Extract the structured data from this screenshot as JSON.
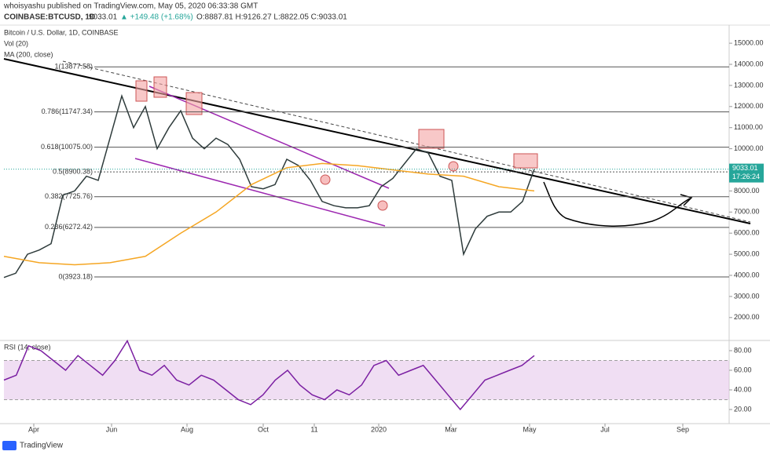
{
  "header": {
    "author_line": "whoisyashu published on TradingView.com, May 05, 2020 06:33:38 GMT",
    "symbol": "COINBASE:BTCUSD, 1D",
    "last": "9033.01",
    "change": "▲ +149.48 (+1.68%)",
    "ohlc": "O:8887.81 H:9126.27 L:8822.05 C:9033.01"
  },
  "chart_data": [
    {
      "type": "line",
      "indicators": [
        "Vol (20)"
      ],
      "xticks": [
        "Apr",
        "Jun",
        "Aug",
        "Oct",
        "11",
        "2020",
        "Mar",
        "May",
        "Jul",
        "Sep"
      ],
      "series": [
        {
          "name": "Bitcoin / U.S. Dollar, 1D, COINBASE",
          "color": "#2e3b3b",
          "values": [
            3900,
            4100,
            5000,
            5200,
            5500,
            7800,
            8000,
            8700,
            8500,
            10500,
            12500,
            11000,
            12000,
            10000,
            11000,
            11800,
            10500,
            10000,
            10500,
            10200,
            9500,
            8200,
            8100,
            8300,
            9500,
            9200,
            8500,
            7500,
            7300,
            7200,
            7200,
            7300,
            8200,
            8600,
            9300,
            10000,
            9800,
            8700,
            8500,
            5000,
            6200,
            6800,
            7000,
            7000,
            7500,
            9033.01
          ]
        },
        {
          "name": "MA (200, close)",
          "color": "#f5a623",
          "values": [
            4900,
            4600,
            4500,
            4600,
            4900,
            6000,
            7000,
            8300,
            9100,
            9300,
            9200,
            9000,
            8800,
            8700,
            8200,
            8000
          ]
        }
      ],
      "fib_levels": [
        {
          "label": "1(13877.58)",
          "value": 13877.58
        },
        {
          "label": "0.786(11747.34)",
          "value": 11747.34
        },
        {
          "label": "0.618(10075.00)",
          "value": 10075.0
        },
        {
          "label": "0.5(8900.38)",
          "value": 8900.38
        },
        {
          "label": "0.382(7725.76)",
          "value": 7725.76
        },
        {
          "label": "0.236(6272.42)",
          "value": 6272.42
        },
        {
          "label": "0(3923.18)",
          "value": 3923.18
        }
      ],
      "last_price": {
        "value": 9033.01,
        "label": "9033.01",
        "countdown": "17:26:24"
      },
      "ylim": [
        1063,
        15747
      ],
      "yticks": [
        {
          "value": 15000,
          "label": "15000.00"
        },
        {
          "value": 14000,
          "label": "14000.00"
        },
        {
          "value": 13000,
          "label": "13000.00"
        },
        {
          "value": 12000,
          "label": "12000.00"
        },
        {
          "value": 11000,
          "label": "11000.00"
        },
        {
          "value": 10000,
          "label": "10000.00"
        },
        {
          "value": 9000,
          "label": "9000.00"
        },
        {
          "value": 8000,
          "label": "8000.00"
        },
        {
          "value": 7000,
          "label": "7000.00"
        },
        {
          "value": 6000,
          "label": "6000.00"
        },
        {
          "value": 5000,
          "label": "5000.00"
        },
        {
          "value": 4000,
          "label": "4000.00"
        },
        {
          "value": 3000,
          "label": "3000.00"
        },
        {
          "value": 2000,
          "label": "2000.00"
        }
      ]
    },
    {
      "type": "line",
      "series": [
        {
          "name": "RSI (14, close)",
          "color": "#7b1fa2",
          "values": [
            50,
            55,
            85,
            80,
            70,
            60,
            75,
            65,
            55,
            70,
            90,
            60,
            55,
            65,
            50,
            45,
            55,
            50,
            40,
            30,
            25,
            35,
            50,
            60,
            45,
            35,
            30,
            40,
            35,
            45,
            65,
            70,
            55,
            60,
            65,
            50,
            35,
            20,
            35,
            50,
            55,
            60,
            65,
            75
          ]
        }
      ],
      "band": [
        30,
        70
      ],
      "ylim": [
        13.6,
        88
      ],
      "yticks": [
        {
          "value": 80,
          "label": "80.00"
        },
        {
          "value": 60,
          "label": "60.00"
        },
        {
          "value": 40,
          "label": "40.00"
        },
        {
          "value": 20,
          "label": "20.00"
        }
      ]
    }
  ],
  "footer": {
    "brand": "TradingView"
  }
}
